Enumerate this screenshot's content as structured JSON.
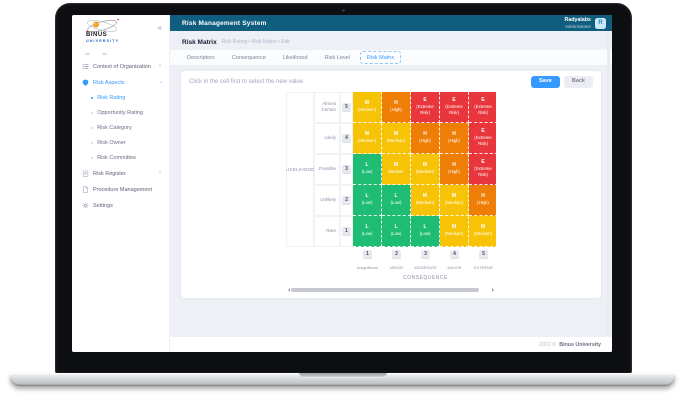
{
  "brand": {
    "name": "BINUS",
    "subname": "UNIVERSITY",
    "collapse_icon": "«"
  },
  "header": {
    "title": "Risk Management System",
    "user_name": "Radyalabs",
    "user_role": "Administrator",
    "avatar_initial": "R"
  },
  "sidebar": {
    "items": [
      {
        "label": "Context of Organization",
        "icon": "list",
        "chevron": "right"
      },
      {
        "label": "Risk Aspects",
        "icon": "shield",
        "chevron": "down",
        "active": true,
        "children": [
          {
            "label": "Risk Rating",
            "active": true
          },
          {
            "label": "Opportunity Rating"
          },
          {
            "label": "Risk Category"
          },
          {
            "label": "Risk Owner"
          },
          {
            "label": "Risk Committee"
          }
        ]
      },
      {
        "label": "Risk Register",
        "icon": "clipboard",
        "chevron": "right"
      },
      {
        "label": "Procedure Management",
        "icon": "file"
      },
      {
        "label": "Settings",
        "icon": "gear"
      }
    ]
  },
  "breadcrumb": {
    "title": "Risk Matrix",
    "path": "Risk Rating • Risk Matrix • Edit"
  },
  "tabs": {
    "items": [
      "Descriptors",
      "Consequence",
      "Likelihood",
      "Risk Level",
      "Risk Matrix"
    ],
    "active": "Risk Matrix"
  },
  "matrix_card": {
    "instruction": "Click in the cell first to select the new value",
    "save_label": "Save",
    "back_label": "Back"
  },
  "matrix": {
    "y_axis_label": "LIKELIHOOD",
    "x_axis_label": "CONSEQUENCE",
    "colors": {
      "low": "#1ebd73",
      "medium": "#f6c306",
      "high": "#ef7e06",
      "extreme": "#e8363c"
    },
    "columns": [
      {
        "value": "1",
        "label": "Insignificant"
      },
      {
        "value": "2",
        "label": "MINOR"
      },
      {
        "value": "3",
        "label": "MODERATE"
      },
      {
        "value": "4",
        "label": "MAJOR"
      },
      {
        "value": "5",
        "label": "EXTREME"
      }
    ],
    "rows": [
      {
        "likelihood": "Almost Certain",
        "value": "5",
        "cells": [
          {
            "code": "M",
            "label": "(Medium)",
            "level": "medium"
          },
          {
            "code": "H",
            "label": "(High)",
            "level": "high"
          },
          {
            "code": "E",
            "label": "(Extreme Risk)",
            "level": "extreme"
          },
          {
            "code": "E",
            "label": "(Extreme Risk)",
            "level": "extreme"
          },
          {
            "code": "E",
            "label": "(Extreme Risk)",
            "level": "extreme"
          }
        ]
      },
      {
        "likelihood": "Likely",
        "value": "4",
        "cells": [
          {
            "code": "M",
            "label": "(Medium)",
            "level": "medium"
          },
          {
            "code": "M",
            "label": "(Medium)",
            "level": "medium"
          },
          {
            "code": "H",
            "label": "(High)",
            "level": "high"
          },
          {
            "code": "H",
            "label": "(High)",
            "level": "high"
          },
          {
            "code": "E",
            "label": "(Extreme Risk)",
            "level": "extreme"
          }
        ]
      },
      {
        "likelihood": "Possible",
        "value": "3",
        "cells": [
          {
            "code": "L",
            "label": "(Low)",
            "level": "low"
          },
          {
            "code": "M",
            "label": "Medium",
            "level": "medium"
          },
          {
            "code": "M",
            "label": "(Medium)",
            "level": "medium"
          },
          {
            "code": "H",
            "label": "(High)",
            "level": "high"
          },
          {
            "code": "E",
            "label": "(Extreme Risk)",
            "level": "extreme"
          }
        ]
      },
      {
        "likelihood": "Unlikely",
        "value": "2",
        "cells": [
          {
            "code": "L",
            "label": "(Low)",
            "level": "low"
          },
          {
            "code": "L",
            "label": "(Low)",
            "level": "low"
          },
          {
            "code": "M",
            "label": "(Medium)",
            "level": "medium"
          },
          {
            "code": "M",
            "label": "(Medium)",
            "level": "medium"
          },
          {
            "code": "H",
            "label": "(High)",
            "level": "high"
          }
        ]
      },
      {
        "likelihood": "Rare",
        "value": "1",
        "cells": [
          {
            "code": "L",
            "label": "(Low)",
            "level": "low"
          },
          {
            "code": "L",
            "label": "(Low)",
            "level": "low"
          },
          {
            "code": "L",
            "label": "(Low)",
            "level": "low"
          },
          {
            "code": "M",
            "label": "(Medium)",
            "level": "medium"
          },
          {
            "code": "M",
            "label": "(Medium)",
            "level": "medium"
          }
        ]
      }
    ]
  },
  "chart_data": {
    "type": "heatmap",
    "title": "Risk Matrix",
    "xlabel": "CONSEQUENCE",
    "ylabel": "LIKELIHOOD",
    "x": [
      1,
      2,
      3,
      4,
      5
    ],
    "x_labels": [
      "Insignificant",
      "MINOR",
      "MODERATE",
      "MAJOR",
      "EXTREME"
    ],
    "y": [
      5,
      4,
      3,
      2,
      1
    ],
    "y_labels": [
      "Almost Certain",
      "Likely",
      "Possible",
      "Unlikely",
      "Rare"
    ],
    "values": [
      [
        "M",
        "H",
        "E",
        "E",
        "E"
      ],
      [
        "M",
        "M",
        "H",
        "H",
        "E"
      ],
      [
        "L",
        "M",
        "M",
        "H",
        "E"
      ],
      [
        "L",
        "L",
        "M",
        "M",
        "H"
      ],
      [
        "L",
        "L",
        "L",
        "M",
        "M"
      ]
    ],
    "legend": {
      "L": "Low",
      "M": "Medium",
      "H": "High",
      "E": "Extreme Risk"
    }
  },
  "footer": {
    "year": "2022 ©",
    "brand": "Binus University"
  },
  "accent": {
    "primary": "#3699ff",
    "header_bg": "#0f5e80"
  }
}
